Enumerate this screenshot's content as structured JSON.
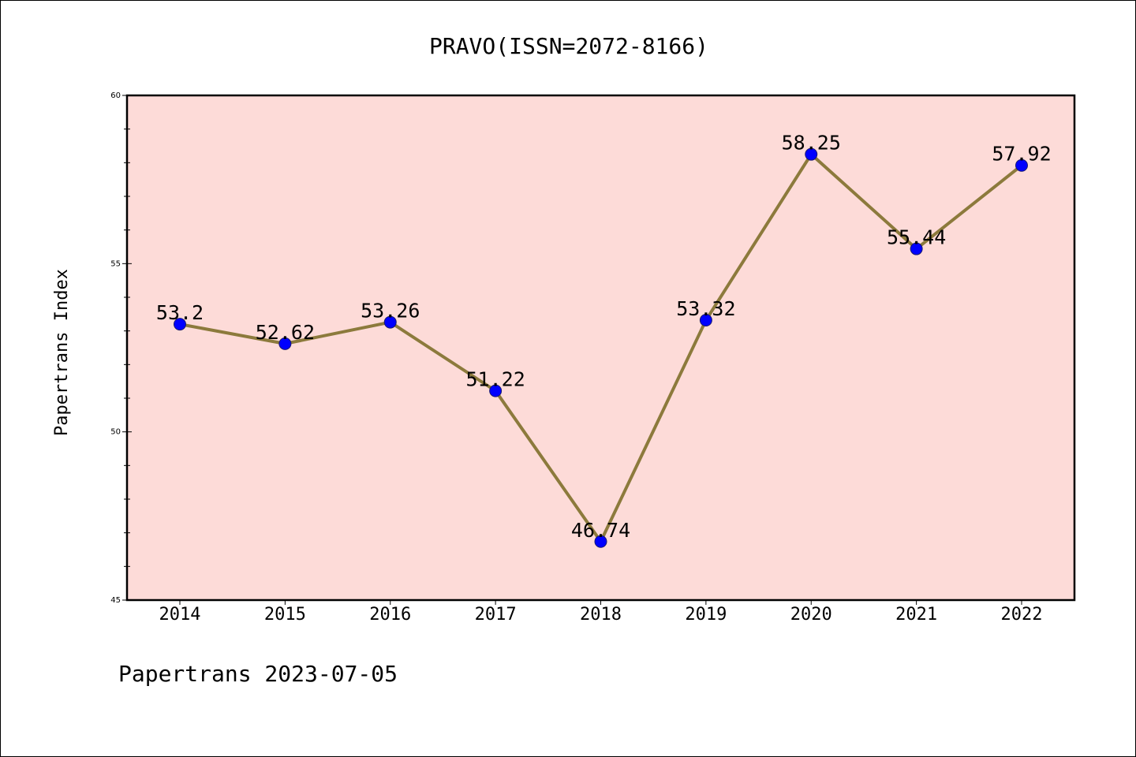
{
  "chart_data": {
    "type": "line",
    "title": "PRAVO(ISSN=2072-8166)",
    "xlabel": "",
    "ylabel": "Papertrans Index",
    "footer": "Papertrans 2023-07-05",
    "categories": [
      "2014",
      "2015",
      "2016",
      "2017",
      "2018",
      "2019",
      "2020",
      "2021",
      "2022"
    ],
    "series": [
      {
        "values": [
          53.2,
          52.62,
          53.26,
          51.22,
          46.74,
          53.32,
          58.25,
          55.44,
          57.92
        ],
        "labels": [
          "53.2",
          "52.62",
          "53.26",
          "51.22",
          "46.74",
          "53.32",
          "58.25",
          "55.44",
          "57.92"
        ]
      }
    ],
    "ylim": [
      45,
      60
    ],
    "yticks": [
      45,
      50,
      55,
      60
    ],
    "ytick_labels": [
      "45",
      "50",
      "55",
      "60"
    ],
    "y_minor_step": 1,
    "grid": false,
    "colors": {
      "plot_background": "#fddbd8",
      "line": "#8c7a3c",
      "marker_fill": "#0000ff",
      "marker_edge": "#1a1a6e",
      "axes": "#000000"
    }
  }
}
